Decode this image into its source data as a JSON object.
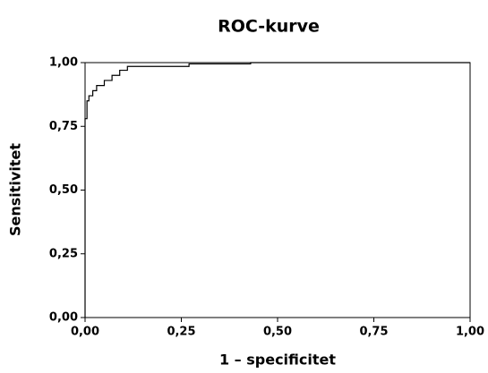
{
  "chart_data": {
    "type": "line",
    "title": "ROC-kurve",
    "x_label": "1 – specificitet",
    "y_label": "Sensitivitet",
    "series": [
      {
        "color": "#000000",
        "x": [
          0,
          0,
          0.005,
          0.005,
          0.01,
          0.01,
          0.02,
          0.02,
          0.03,
          0.03,
          0.05,
          0.05,
          0.07,
          0.07,
          0.09,
          0.09,
          0.11,
          0.11,
          0.27,
          0.27,
          0.43,
          0.43,
          1
        ],
        "values": [
          0,
          0.78,
          0.78,
          0.85,
          0.85,
          0.87,
          0.87,
          0.89,
          0.89,
          0.91,
          0.91,
          0.93,
          0.93,
          0.95,
          0.95,
          0.97,
          0.97,
          0.985,
          0.985,
          0.995,
          0.995,
          1,
          1
        ]
      }
    ],
    "xlim": [
      0,
      1
    ],
    "ylim": [
      0,
      1
    ],
    "xticks": [
      {
        "value": 0,
        "label": "0,00"
      },
      {
        "value": 0.25,
        "label": "0,25"
      },
      {
        "value": 0.5,
        "label": "0,50"
      },
      {
        "value": 0.75,
        "label": "0,75"
      },
      {
        "value": 1,
        "label": "1,00"
      }
    ],
    "yticks": [
      {
        "value": 0,
        "label": "0,00"
      },
      {
        "value": 0.25,
        "label": "0,25"
      },
      {
        "value": 0.5,
        "label": "0,50"
      },
      {
        "value": 0.75,
        "label": "0,75"
      },
      {
        "value": 1,
        "label": "1,00"
      }
    ]
  }
}
